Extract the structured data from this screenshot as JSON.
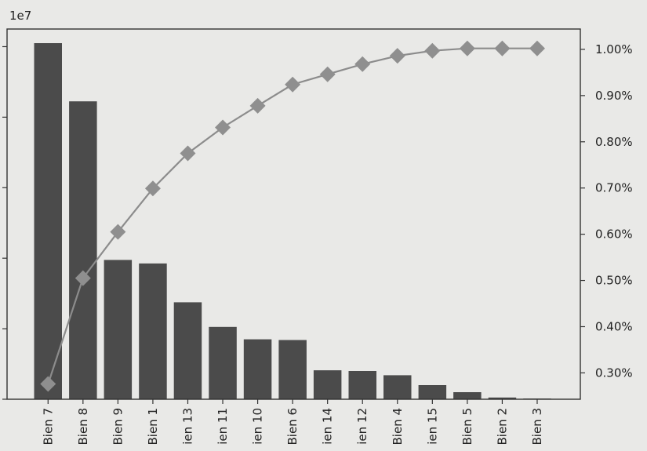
{
  "chart_data": {
    "type": "bar",
    "categories": [
      "Bien 7",
      "Bien 8",
      "Bien 9",
      "Bien 1",
      "ien 13",
      "ien 11",
      "ien 10",
      "Bien 6",
      "ien 14",
      "ien 12",
      "Bien 4",
      "ien 15",
      "Bien 5",
      "Bien 2",
      "Bien 3"
    ],
    "tick_labels": [
      "Bien 7",
      "Bien 8",
      "Bien 9",
      "Bien 1",
      "ien 13",
      "ien 11",
      "ien 10",
      "Bien 6",
      "ien 14",
      "ien 12",
      "Bien 4",
      "ien 15",
      "Bien 5",
      "Bien 2",
      "Bien 3"
    ],
    "series": [
      {
        "type": "bar",
        "axis": "left",
        "values": [
          10.1,
          8.45,
          3.95,
          3.85,
          2.75,
          2.05,
          1.7,
          1.68,
          0.82,
          0.8,
          0.68,
          0.4,
          0.2,
          0.05,
          0.02
        ]
      },
      {
        "type": "line",
        "axis": "right",
        "marker": "diamond",
        "values": [
          0.276,
          0.505,
          0.605,
          0.699,
          0.775,
          0.831,
          0.878,
          0.924,
          0.946,
          0.968,
          0.986,
          0.997,
          1.002,
          1.002,
          1.002
        ]
      }
    ],
    "left_axis": {
      "offset_label": "1e7",
      "ylim": [
        0,
        10.5
      ],
      "ticks": [
        0,
        2,
        4,
        6,
        8,
        10
      ]
    },
    "right_axis": {
      "ylim": [
        0.243,
        1.044
      ],
      "ticks": [
        0.3,
        0.4,
        0.5,
        0.6,
        0.7,
        0.8,
        0.9,
        1.0
      ],
      "tick_labels": [
        "0.30%",
        "0.40%",
        "0.50%",
        "0.60%",
        "0.70%",
        "0.80%",
        "0.90%",
        "1.00%"
      ]
    },
    "colors": {
      "bar": "#4b4b4b",
      "line": "#8c8c8c",
      "marker": "#8f8f8f",
      "axis": "#333333"
    },
    "grid": false
  },
  "text": {
    "left_offset": "1e7"
  }
}
